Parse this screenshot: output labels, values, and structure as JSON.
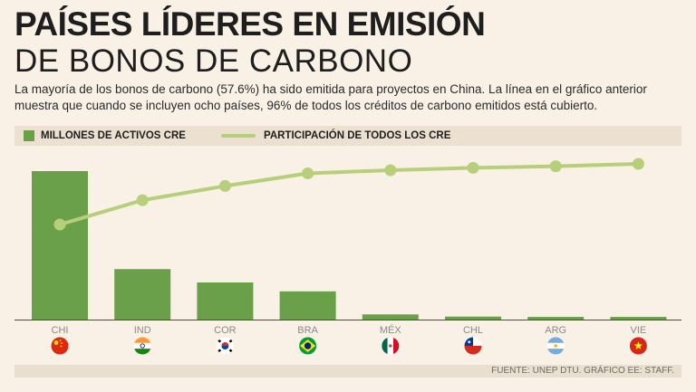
{
  "header": {
    "title_line1": "PAÍSES LÍDERES EN EMISIÓN",
    "title_line2": "DE BONOS DE CARBONO",
    "subtitle": "La mayoría de los bonos de carbono (57.6%) ha sido emitida para proyectos en China. La línea en el gráfico anterior muestra que cuando se incluyen ocho países, 96% de todos los créditos de carbono emitidos está cubierto."
  },
  "legend": {
    "bars_label": "MILLONES DE ACTIVOS CRE",
    "line_label": "PARTICIPACIÓN DE TODOS LOS CRE"
  },
  "colors": {
    "bar": "#6aa04a",
    "line": "#b7cf7a",
    "axis": "#4a4a4a",
    "tick_label": "#8a8a8a"
  },
  "chart_data": {
    "type": "bar",
    "title": "PAÍSES LÍDERES EN EMISIÓN DE BONOS DE CARBONO",
    "categories": [
      "CHI",
      "IND",
      "COR",
      "BRA",
      "MÉX",
      "CHL",
      "ARG",
      "VIE"
    ],
    "flags": [
      "china",
      "india",
      "south-korea",
      "brazil",
      "mexico",
      "chile",
      "argentina",
      "vietnam"
    ],
    "series": [
      {
        "name": "MILLONES DE ACTIVOS CRE",
        "kind": "bar",
        "values": [
          1000,
          340,
          250,
          190,
          35,
          20,
          18,
          18
        ]
      },
      {
        "name": "PARTICIPACIÓN DE TODOS LOS CRE",
        "kind": "line",
        "unit": "%",
        "values": [
          57.6,
          73,
          82,
          90,
          92,
          93.5,
          94.5,
          96
        ]
      }
    ],
    "bar_ylim": [
      0,
      1000
    ],
    "line_ylim": [
      0,
      100
    ],
    "grid": false,
    "legend_position": "top"
  },
  "footer": {
    "source": "FUENTE: UNEP DTU. GRÁFICO EE: STAFF."
  }
}
